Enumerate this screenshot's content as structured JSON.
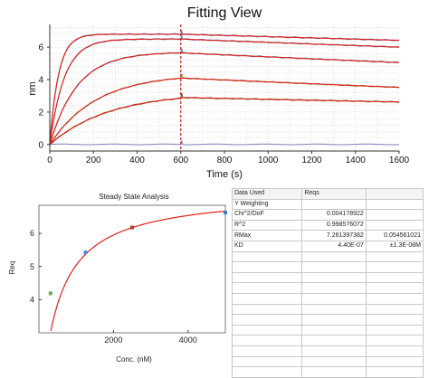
{
  "chart_data": [
    {
      "type": "line",
      "title": "Fitting View",
      "xlabel": "Time (s)",
      "ylabel": "nm",
      "xlim": [
        0,
        1600
      ],
      "ylim": [
        -0.4,
        7.4
      ],
      "x_ticks": [
        0,
        200,
        400,
        600,
        800,
        1000,
        1200,
        1400,
        1600
      ],
      "y_ticks": [
        0,
        2,
        4,
        6
      ],
      "grid": true,
      "injection_marker_x": 600,
      "association_end_s": 600,
      "colors": {
        "fit": "#e0201a",
        "marker": "#d01818",
        "grid": "#bfbfbf"
      },
      "series": [
        {
          "color": "#3c78d8",
          "kon": 0.025,
          "plateau": 6.8,
          "max_at_600": 6.8,
          "end_at_1600": 6.42
        },
        {
          "color": "#4a86e8",
          "kon": 0.015,
          "plateau": 6.5,
          "max_at_600": 6.5,
          "end_at_1600": 6.0
        },
        {
          "color": "#3d85c6",
          "kon": 0.008,
          "plateau": 5.7,
          "max_at_600": 5.65,
          "end_at_1600": 5.05
        },
        {
          "color": "#6aa84f",
          "kon": 0.0047,
          "plateau": 4.35,
          "max_at_600": 4.1,
          "end_at_1600": 3.52
        },
        {
          "color": "#38761d",
          "kon": 0.0037,
          "plateau": 3.2,
          "max_at_600": 2.9,
          "end_at_1600": 2.62
        },
        {
          "color": "#7f7fbf",
          "kon": 0.0,
          "plateau": 0.0,
          "max_at_600": 0.0,
          "end_at_1600": -0.05
        }
      ]
    },
    {
      "type": "scatter",
      "title": "Steady State Analysis",
      "xlabel": "Conc. (nM)",
      "ylabel": "Req",
      "xlim": [
        0,
        5000
      ],
      "ylim": [
        3.0,
        6.85
      ],
      "x_ticks": [
        2000,
        4000
      ],
      "y_ticks": [
        4,
        5,
        6
      ],
      "points": [
        {
          "x": 312,
          "y": 4.19,
          "color": "#6aa84f"
        },
        {
          "x": 1250,
          "y": 5.43,
          "color": "#4a86e8"
        },
        {
          "x": 2500,
          "y": 6.18,
          "color": "#c0392b"
        },
        {
          "x": 5000,
          "y": 6.63,
          "color": "#3c78d8"
        }
      ],
      "fit": {
        "color": "#e0201a",
        "rmax": 7.261397382,
        "kd_nM": 440
      }
    }
  ],
  "table": {
    "header": [
      "Data Used",
      "Reqs",
      ""
    ],
    "rows": [
      [
        "Y Weighting",
        "",
        ""
      ],
      [
        "Chi^2/DoF",
        "0.004178922",
        ""
      ],
      [
        "R^2",
        "0.998576072",
        ""
      ],
      [
        "RMax",
        "7.261397382",
        "0.054561021"
      ],
      [
        "KD",
        "4.40E-07",
        "±1.3E-08M"
      ],
      [
        "",
        "",
        ""
      ],
      [
        "",
        "",
        ""
      ],
      [
        "",
        "",
        ""
      ],
      [
        "",
        "",
        ""
      ],
      [
        "",
        "",
        ""
      ],
      [
        "",
        "",
        ""
      ],
      [
        "",
        "",
        ""
      ],
      [
        "",
        "",
        ""
      ],
      [
        "",
        "",
        ""
      ],
      [
        "",
        "",
        ""
      ],
      [
        "",
        "",
        ""
      ],
      [
        "",
        "",
        ""
      ]
    ]
  }
}
